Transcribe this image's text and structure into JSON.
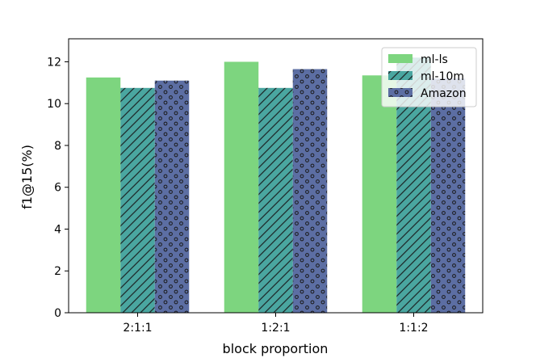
{
  "chart_data": {
    "type": "bar",
    "categories": [
      "2:1:1",
      "1:2:1",
      "1:1:2"
    ],
    "series": [
      {
        "name": "ml-ls",
        "values": [
          11.25,
          12.0,
          11.35
        ],
        "color": "#7dd57f",
        "pattern": "none"
      },
      {
        "name": "ml-10m",
        "values": [
          10.75,
          10.75,
          12.2
        ],
        "color": "#4aa6a0",
        "pattern": "diagonal-lines"
      },
      {
        "name": "Amazon",
        "values": [
          11.1,
          11.65,
          11.2
        ],
        "color": "#5c6ea3",
        "pattern": "dots"
      }
    ],
    "xlabel": "block proportion",
    "ylabel": "f1@15(%)",
    "ylim": [
      0,
      13.1
    ],
    "yticks": [
      0,
      2,
      4,
      6,
      8,
      10,
      12
    ],
    "grid": false,
    "legend_position": "top-right"
  }
}
